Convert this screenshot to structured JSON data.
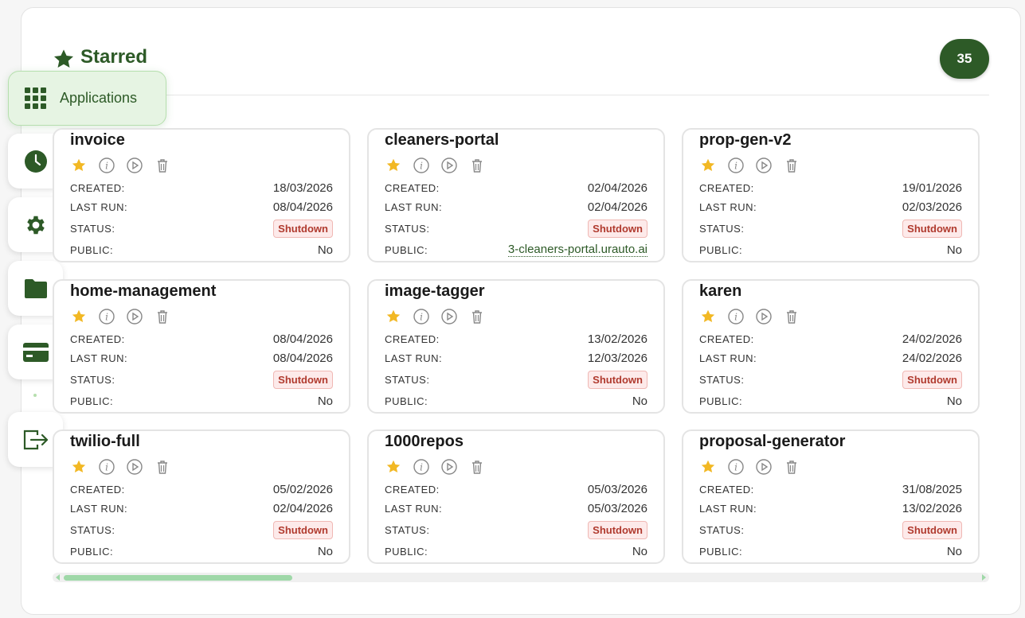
{
  "header": {
    "title": "Starred",
    "count": "35"
  },
  "sidebar": {
    "active_label": "Applications",
    "items": [
      "applications",
      "history",
      "settings",
      "files",
      "billing",
      "logout"
    ]
  },
  "labels": {
    "created": "CREATED:",
    "last_run": "LAST RUN:",
    "status": "STATUS:",
    "public": "PUBLIC:"
  },
  "colors": {
    "brand": "#2d5a27",
    "star": "#f2b824",
    "shutdown": "#b03a2e",
    "active_bg": "#e6f4e3"
  },
  "apps": [
    {
      "name": "invoice",
      "created": "18/03/2026",
      "last_run": "08/04/2026",
      "status": "Shutdown",
      "public": "No"
    },
    {
      "name": "cleaners-portal",
      "created": "02/04/2026",
      "last_run": "02/04/2026",
      "status": "Shutdown",
      "public": "3-cleaners-portal.urauto.ai"
    },
    {
      "name": "prop-gen-v2",
      "created": "19/01/2026",
      "last_run": "02/03/2026",
      "status": "Shutdown",
      "public": "No"
    },
    {
      "name": "home-management",
      "created": "08/04/2026",
      "last_run": "08/04/2026",
      "status": "Shutdown",
      "public": "No"
    },
    {
      "name": "image-tagger",
      "created": "13/02/2026",
      "last_run": "12/03/2026",
      "status": "Shutdown",
      "public": "No"
    },
    {
      "name": "karen",
      "created": "24/02/2026",
      "last_run": "24/02/2026",
      "status": "Shutdown",
      "public": "No"
    },
    {
      "name": "twilio-full",
      "created": "05/02/2026",
      "last_run": "02/04/2026",
      "status": "Shutdown",
      "public": "No"
    },
    {
      "name": "1000repos",
      "created": "05/03/2026",
      "last_run": "05/03/2026",
      "status": "Shutdown",
      "public": "No"
    },
    {
      "name": "proposal-generator",
      "created": "31/08/2025",
      "last_run": "13/02/2026",
      "status": "Shutdown",
      "public": "No"
    }
  ]
}
